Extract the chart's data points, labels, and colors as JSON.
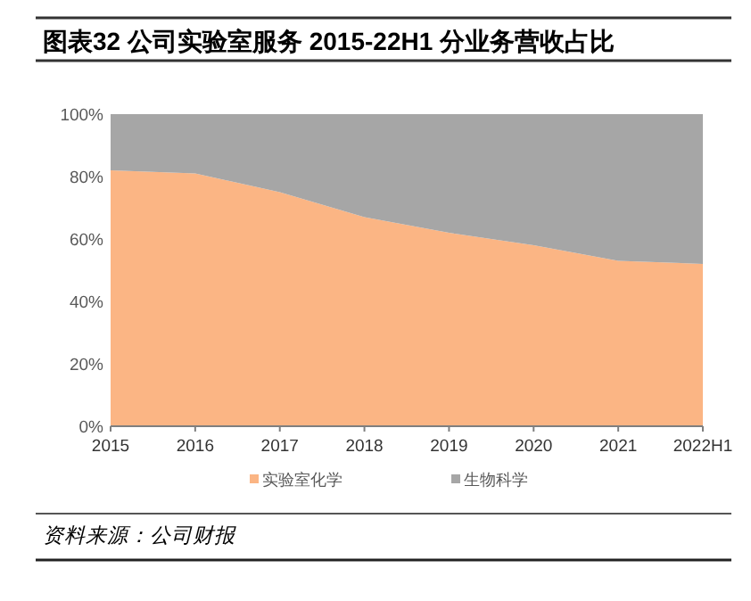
{
  "chart_data": {
    "type": "area",
    "stacked": true,
    "title": "图表32 公司实验室服务 2015-22H1 分业务营收占比",
    "categories": [
      "2015",
      "2016",
      "2017",
      "2018",
      "2019",
      "2020",
      "2021",
      "2022H1"
    ],
    "series": [
      {
        "name": "实验室化学",
        "color": "#fbb584",
        "values": [
          82,
          81,
          75,
          67,
          62,
          58,
          53,
          52
        ]
      },
      {
        "name": "生物科学",
        "color": "#a6a6a6",
        "values": [
          18,
          19,
          25,
          33,
          38,
          42,
          47,
          48
        ]
      }
    ],
    "ylim": [
      0,
      100
    ],
    "yticks": [
      {
        "value": 0,
        "label": "0%"
      },
      {
        "value": 20,
        "label": "20%"
      },
      {
        "value": 40,
        "label": "40%"
      },
      {
        "value": 60,
        "label": "60%"
      },
      {
        "value": 80,
        "label": "80%"
      },
      {
        "value": 100,
        "label": "100%"
      }
    ],
    "grid": false,
    "legend": "bottom",
    "annotations": [
      "资料来源：公司财报"
    ]
  }
}
